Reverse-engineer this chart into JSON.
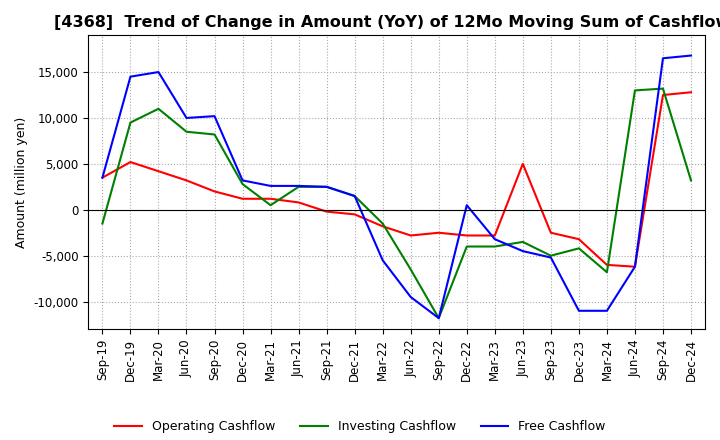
{
  "title": "[4368]  Trend of Change in Amount (YoY) of 12Mo Moving Sum of Cashflows",
  "ylabel": "Amount (million yen)",
  "title_fontsize": 11.5,
  "label_fontsize": 9,
  "tick_fontsize": 8.5,
  "x_labels": [
    "Sep-19",
    "Dec-19",
    "Mar-20",
    "Jun-20",
    "Sep-20",
    "Dec-20",
    "Mar-21",
    "Jun-21",
    "Sep-21",
    "Dec-21",
    "Mar-22",
    "Jun-22",
    "Sep-22",
    "Dec-22",
    "Mar-23",
    "Jun-23",
    "Sep-23",
    "Dec-23",
    "Mar-24",
    "Jun-24",
    "Sep-24",
    "Dec-24"
  ],
  "operating": [
    3500,
    5200,
    4200,
    3200,
    2000,
    1200,
    1200,
    800,
    -200,
    -500,
    -1800,
    -2800,
    -2500,
    -2800,
    -2800,
    5000,
    -2500,
    -3200,
    -6000,
    -6200,
    12500,
    12800
  ],
  "investing": [
    -1500,
    9500,
    11000,
    8500,
    8200,
    2800,
    500,
    2500,
    2500,
    1500,
    -1500,
    -6500,
    -11800,
    -4000,
    -4000,
    -3500,
    -5000,
    -4200,
    -6800,
    13000,
    13200,
    3200
  ],
  "free": [
    3500,
    14500,
    15000,
    10000,
    10200,
    3200,
    2600,
    2600,
    2500,
    1500,
    -5500,
    -9500,
    -11800,
    500,
    -3200,
    -4500,
    -5200,
    -11000,
    -11000,
    -6200,
    16500,
    16800
  ],
  "ylim": [
    -13000,
    19000
  ],
  "yticks": [
    -10000,
    -5000,
    0,
    5000,
    10000,
    15000
  ],
  "operating_color": "#ff0000",
  "investing_color": "#008000",
  "free_color": "#0000ff",
  "grid_color": "#aaaaaa",
  "background_color": "#ffffff"
}
